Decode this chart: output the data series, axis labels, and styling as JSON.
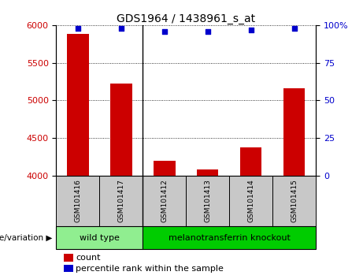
{
  "title": "GDS1964 / 1438961_s_at",
  "samples": [
    "GSM101416",
    "GSM101417",
    "GSM101412",
    "GSM101413",
    "GSM101414",
    "GSM101415"
  ],
  "counts": [
    5880,
    5220,
    4200,
    4080,
    4380,
    5160
  ],
  "percentile_ranks": [
    98,
    98,
    96,
    96,
    97,
    98
  ],
  "ylim_left": [
    4000,
    6000
  ],
  "ylim_right": [
    0,
    100
  ],
  "yticks_left": [
    4000,
    4500,
    5000,
    5500,
    6000
  ],
  "yticks_right": [
    0,
    25,
    50,
    75,
    100
  ],
  "bar_color": "#cc0000",
  "dot_color": "#0000cc",
  "groups": [
    {
      "label": "wild type",
      "n": 2,
      "color": "#90ee90"
    },
    {
      "label": "melanotransferrin knockout",
      "n": 4,
      "color": "#00cc00"
    }
  ],
  "group_label": "genotype/variation",
  "legend_count_label": "count",
  "legend_pct_label": "percentile rank within the sample",
  "tick_label_color_left": "#cc0000",
  "tick_label_color_right": "#0000cc",
  "background_color": "#ffffff",
  "sample_box_color": "#c8c8c8"
}
